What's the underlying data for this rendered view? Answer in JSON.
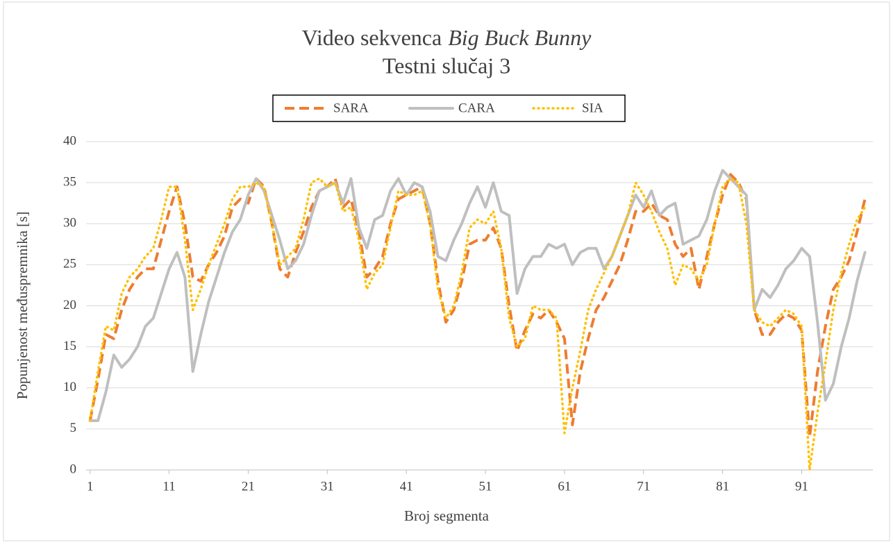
{
  "chart_data": {
    "type": "line",
    "title": "Video sekvenca",
    "title_italic": "Big Buck Bunny",
    "subtitle": "Testni slučaj 3",
    "x_label": "Broj segmenta",
    "y_label": "Popunjenost međuspremnika [s]",
    "x": [
      1,
      2,
      3,
      4,
      5,
      6,
      7,
      8,
      9,
      10,
      11,
      12,
      13,
      14,
      15,
      16,
      17,
      18,
      19,
      20,
      21,
      22,
      23,
      24,
      25,
      26,
      27,
      28,
      29,
      30,
      31,
      32,
      33,
      34,
      35,
      36,
      37,
      38,
      39,
      40,
      41,
      42,
      43,
      44,
      45,
      46,
      47,
      48,
      49,
      50,
      51,
      52,
      53,
      54,
      55,
      56,
      57,
      58,
      59,
      60,
      61,
      62,
      63,
      64,
      65,
      66,
      67,
      68,
      69,
      70,
      71,
      72,
      73,
      74,
      75,
      76,
      77,
      78,
      79,
      80,
      81,
      82,
      83,
      84,
      85,
      86,
      87,
      88,
      89,
      90,
      91,
      92,
      93,
      94,
      95,
      96,
      97,
      98,
      99
    ],
    "xlim": [
      0.5,
      100
    ],
    "xticks": [
      1,
      11,
      21,
      31,
      41,
      51,
      61,
      71,
      81,
      91
    ],
    "ylim": [
      0,
      40
    ],
    "yticks": [
      0,
      5,
      10,
      15,
      20,
      25,
      30,
      35,
      40
    ],
    "grid": true,
    "legend": "top",
    "series": [
      {
        "name": "SARA",
        "color": "#ed7d31",
        "values": [
          6,
          11,
          16.5,
          16,
          19.5,
          22,
          23.5,
          24.5,
          24.5,
          28,
          31.5,
          34.5,
          30,
          23.5,
          23,
          25,
          26.5,
          28.5,
          32,
          33,
          32.5,
          35.5,
          34.5,
          30,
          24.5,
          23.5,
          26.5,
          29,
          32,
          34,
          34.5,
          35.5,
          32,
          33,
          29,
          23.5,
          24.5,
          26,
          30,
          33,
          33.5,
          34,
          34.5,
          30,
          23,
          18,
          19.5,
          23,
          27.5,
          28,
          28,
          29.5,
          27,
          20,
          14.5,
          17,
          19,
          18.5,
          19.5,
          18,
          16,
          5.5,
          12,
          16,
          19.5,
          21,
          23,
          25,
          28,
          31.5,
          31.5,
          32.5,
          31,
          30.5,
          27.5,
          26,
          27,
          22,
          26,
          30,
          33.5,
          36,
          35,
          33,
          19.5,
          16.5,
          16.5,
          18,
          19,
          18.5,
          17,
          4,
          12,
          17.5,
          22,
          23.5,
          25.5,
          29,
          33
        ]
      },
      {
        "name": "CARA",
        "color": "#bfbfbf",
        "values": [
          6,
          6,
          9.5,
          14,
          12.5,
          13.5,
          15,
          17.5,
          18.5,
          21.5,
          24.5,
          26.5,
          23.5,
          12,
          16.5,
          20.5,
          23.5,
          26.5,
          29,
          30.5,
          33.5,
          35.5,
          34,
          31,
          28,
          24.5,
          25.5,
          27.5,
          31,
          34,
          34.5,
          35,
          32.5,
          35.5,
          29.5,
          27,
          30.5,
          31,
          34,
          35.5,
          33.5,
          35,
          34.5,
          31.5,
          26,
          25.5,
          28,
          30,
          32.5,
          34.5,
          32,
          35,
          31.5,
          31,
          21.5,
          24.5,
          26,
          26,
          27.5,
          27,
          27.5,
          25,
          26.5,
          27,
          27,
          24.5,
          26,
          28.5,
          31,
          33.5,
          32,
          34,
          31,
          32,
          32.5,
          27.5,
          28,
          28.5,
          30.5,
          34,
          36.5,
          35.5,
          34.5,
          33.5,
          19.5,
          22,
          21,
          22.5,
          24.5,
          25.5,
          27,
          26,
          18,
          8.5,
          10.5,
          15,
          18.5,
          23,
          26.5
        ]
      },
      {
        "name": "SIA",
        "color": "#ffc000",
        "values": [
          6,
          12,
          17.5,
          17,
          21.5,
          23.5,
          24.5,
          26,
          27,
          30.5,
          34.5,
          34.5,
          28,
          19.5,
          22,
          25,
          27.5,
          30,
          33,
          34.5,
          34.5,
          35,
          34.5,
          30,
          25,
          26,
          27,
          30.5,
          35,
          35.5,
          34.5,
          35,
          31.5,
          32,
          28,
          22,
          24,
          25,
          29.5,
          34,
          33.5,
          33.5,
          34,
          30,
          22,
          18.5,
          20,
          24,
          29.5,
          30.5,
          30,
          31.5,
          27,
          18.5,
          15,
          16,
          20,
          19.5,
          19.5,
          18.5,
          4.5,
          10,
          14.5,
          19.5,
          22,
          24,
          26,
          28.5,
          31,
          35,
          33.5,
          31.5,
          29,
          27,
          22.5,
          25,
          24.5,
          23,
          25,
          30,
          34.5,
          35.5,
          35,
          30,
          19.5,
          18,
          17.5,
          18.5,
          19.5,
          19,
          17.5,
          0,
          7,
          13,
          19.5,
          24,
          27.5,
          30.5,
          32
        ]
      }
    ]
  }
}
